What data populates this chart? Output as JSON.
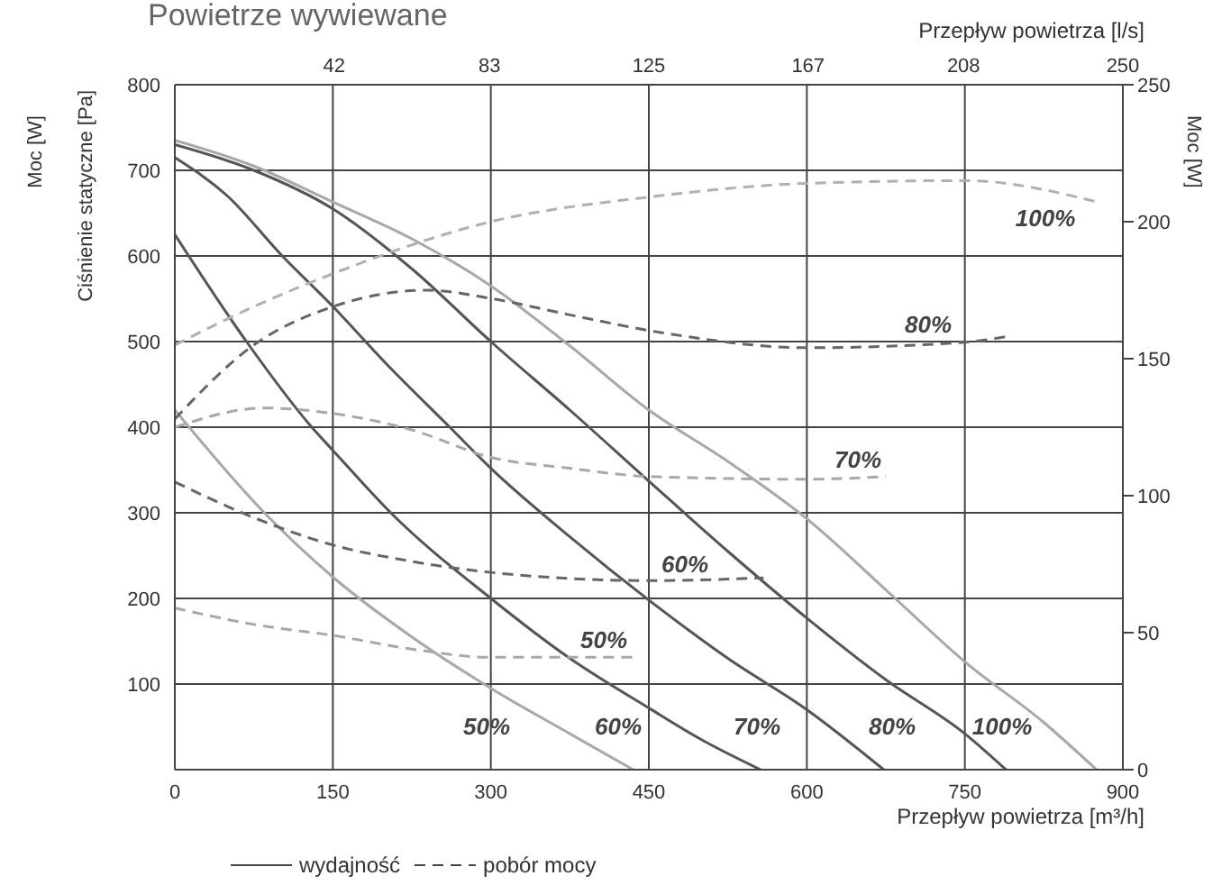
{
  "chart_data": {
    "type": "line",
    "title": "Powietrze wywiewane",
    "xlabel": "Przepływ powietrza [m³/h]",
    "x2label": "Przepływ powietrza [l/s]",
    "ylabel": "Ciśnienie statyczne [Pa]",
    "y2label": "Moc [W]",
    "xlim": [
      0,
      900
    ],
    "xticks": [
      0,
      150,
      300,
      450,
      600,
      750,
      900
    ],
    "x2lim": [
      0,
      250
    ],
    "x2ticks": [
      42,
      83,
      125,
      167,
      208,
      250
    ],
    "ylim": [
      0,
      800
    ],
    "yticks": [
      100,
      200,
      300,
      400,
      500,
      600,
      700,
      800
    ],
    "y2lim": [
      0,
      250
    ],
    "y2ticks": [
      0,
      50,
      100,
      150,
      200,
      250
    ],
    "grid": true,
    "series": [
      {
        "color": "#a8a8a8",
        "x": [
          0,
          85,
          150,
          225,
          300,
          375,
          435
        ],
        "values": [
          420,
          300,
          225,
          155,
          95,
          42,
          0
        ]
      },
      {
        "color": "#555555",
        "x": [
          0,
          68,
          130,
          150,
          205,
          300,
          375,
          450,
          500,
          556
        ],
        "values": [
          625,
          500,
          400,
          373,
          300,
          200,
          130,
          72,
          35,
          0
        ]
      },
      {
        "color": "#555555",
        "x": [
          0,
          50,
          102,
          150,
          200,
          261,
          300,
          375,
          450,
          525,
          600,
          673
        ],
        "values": [
          715,
          670,
          600,
          541,
          475,
          400,
          352,
          272,
          198,
          130,
          70,
          0
        ]
      },
      {
        "color": "#555555",
        "x": [
          0,
          75,
          150,
          225,
          300,
          375,
          450,
          525,
          600,
          675,
          750,
          789
        ],
        "values": [
          730,
          700,
          655,
          585,
          500,
          420,
          337,
          255,
          177,
          105,
          42,
          0
        ]
      },
      {
        "color": "#a8a8a8",
        "x": [
          0,
          75,
          150,
          225,
          300,
          375,
          450,
          525,
          600,
          675,
          750,
          825,
          875
        ],
        "values": [
          735,
          705,
          663,
          620,
          565,
          495,
          420,
          360,
          293,
          210,
          126,
          55,
          0
        ]
      },
      {
        "color": "#a8a8a8",
        "axis": "y2",
        "line_style": "dashed",
        "x": [
          0,
          75,
          150,
          225,
          300,
          438
        ],
        "values": [
          59,
          53,
          49,
          44,
          41,
          41
        ]
      },
      {
        "color": "#666666",
        "axis": "y2",
        "line_style": "dashed",
        "x": [
          0,
          75,
          150,
          225,
          300,
          450,
          559
        ],
        "values": [
          105,
          92,
          82,
          76,
          72,
          69,
          70
        ]
      },
      {
        "color": "#a8a8a8",
        "axis": "y2",
        "line_style": "dashed",
        "x": [
          0,
          85,
          150,
          225,
          300,
          375,
          450,
          600,
          675
        ],
        "values": [
          125,
          132,
          130,
          124,
          114,
          110,
          107,
          106,
          107
        ]
      },
      {
        "color": "#666666",
        "axis": "y2",
        "line_style": "dashed",
        "x": [
          0,
          75,
          150,
          240,
          300,
          375,
          470,
          600,
          750,
          789
        ],
        "values": [
          128,
          155,
          169,
          175,
          172,
          166,
          159,
          154,
          156,
          158
        ]
      },
      {
        "color": "#b0b0b0",
        "axis": "y2",
        "line_style": "dashed",
        "x": [
          0,
          75,
          150,
          300,
          450,
          600,
          750,
          878
        ],
        "values": [
          155,
          169,
          181,
          200,
          209,
          214,
          215,
          207
        ]
      }
    ],
    "annotations": [
      "Moc [W]",
      "wydajność",
      "pobór mocy",
      "50%",
      "60%",
      "70%",
      "80%",
      "100%",
      "50%",
      "60%",
      "70%",
      "80%",
      "100%"
    ]
  }
}
